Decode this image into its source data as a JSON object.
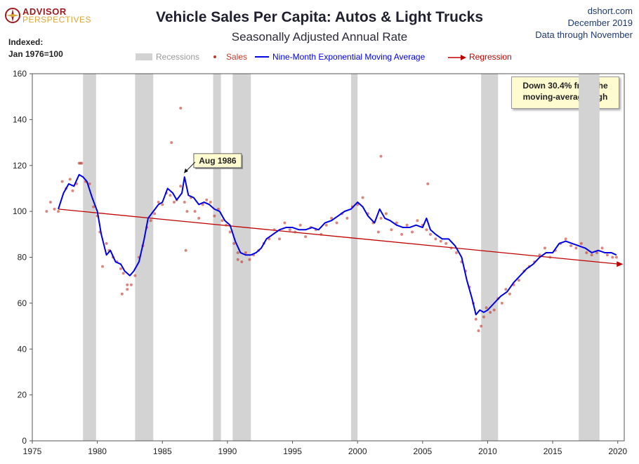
{
  "brand": {
    "line1": "ADVISOR",
    "line2": "PERSPECTIVES",
    "primary_color": "#9b1c20",
    "secondary_color": "#d9a63a"
  },
  "header": {
    "title": "Vehicle Sales Per Capita: Autos & Light Trucks",
    "subtitle": "Seasonally Adjusted Annual Rate",
    "site": "dshort.com",
    "date": "December 2019",
    "data_through": "Data through November",
    "index_label_1": "Indexed:",
    "index_label_2": "Jan 1976=100"
  },
  "callout": {
    "line1": "Down 30.4% from the",
    "line2": "moving-average high"
  },
  "chart_data": {
    "type": "line",
    "title": "Vehicle Sales Per Capita: Autos & Light Trucks",
    "subtitle": "Seasonally Adjusted Annual Rate",
    "xlabel": "",
    "ylabel": "",
    "xlim": [
      1975,
      2020.5
    ],
    "ylim": [
      0,
      160
    ],
    "x_ticks": [
      1975,
      1980,
      1985,
      1990,
      1995,
      2000,
      2005,
      2010,
      2015,
      2020
    ],
    "y_ticks": [
      0,
      20,
      40,
      60,
      80,
      100,
      120,
      140,
      160
    ],
    "grid": false,
    "legend_placement": "top-center",
    "legend": [
      {
        "label": "Recessions",
        "kind": "bar",
        "color": "#d3d3d3"
      },
      {
        "label": "Sales",
        "kind": "dots",
        "color": "#c0392b"
      },
      {
        "label": "Nine-Month Exponential Moving Average",
        "kind": "line",
        "color": "#0000e6"
      },
      {
        "label": "Regression",
        "kind": "arrow",
        "color": "#c00000"
      }
    ],
    "recessions": [
      [
        1978.9,
        1979.9
      ],
      [
        1982.9,
        1984.3
      ],
      [
        1988.9,
        1989.5
      ],
      [
        1990.4,
        1991.8
      ],
      [
        1999.5,
        2000.0
      ],
      [
        2009.5,
        2010.8
      ],
      [
        2017.0,
        2018.6
      ]
    ],
    "regression": {
      "x": [
        1977.0,
        2020.3
      ],
      "y": [
        101.0,
        77.0
      ]
    },
    "annotation": {
      "text": "Aug 1986",
      "x": 1986.6,
      "y": 116
    },
    "series": [
      {
        "name": "Nine-Month Exponential Moving Average",
        "color": "#0000e6",
        "x": [
          1977.0,
          1977.4,
          1977.8,
          1978.2,
          1978.6,
          1978.9,
          1979.2,
          1979.6,
          1980.0,
          1980.3,
          1980.7,
          1981.0,
          1981.4,
          1981.8,
          1982.1,
          1982.5,
          1982.8,
          1983.2,
          1983.6,
          1983.9,
          1984.3,
          1984.7,
          1985.0,
          1985.4,
          1985.8,
          1986.1,
          1986.5,
          1986.7,
          1987.0,
          1987.4,
          1987.8,
          1988.2,
          1988.6,
          1989.0,
          1989.4,
          1989.8,
          1990.2,
          1990.6,
          1991.0,
          1991.4,
          1991.8,
          1992.2,
          1992.6,
          1993.0,
          1993.5,
          1994.0,
          1994.5,
          1995.0,
          1995.5,
          1996.0,
          1996.5,
          1997.0,
          1997.5,
          1998.0,
          1998.5,
          1999.0,
          1999.5,
          2000.0,
          2000.4,
          2000.8,
          2001.3,
          2001.7,
          2002.1,
          2002.5,
          2003.0,
          2003.5,
          2004.0,
          2004.5,
          2005.0,
          2005.3,
          2005.6,
          2006.0,
          2006.5,
          2007.0,
          2007.5,
          2008.0,
          2008.4,
          2008.8,
          2009.1,
          2009.4,
          2009.7,
          2010.0,
          2010.5,
          2011.0,
          2011.5,
          2012.0,
          2012.5,
          2013.0,
          2013.5,
          2014.0,
          2014.5,
          2015.0,
          2015.5,
          2016.0,
          2016.5,
          2017.0,
          2017.5,
          2018.0,
          2018.5,
          2019.0,
          2019.5,
          2019.9
        ],
        "y": [
          101,
          108,
          112,
          111,
          116,
          115,
          113,
          106,
          100,
          90,
          81,
          83,
          78,
          77,
          74,
          72,
          74,
          78,
          88,
          97,
          100,
          103,
          104,
          110,
          108,
          105,
          108,
          115,
          107,
          106,
          103,
          104,
          103,
          101,
          100,
          96,
          94,
          87,
          82,
          81,
          81,
          82,
          84,
          88,
          90,
          92,
          93,
          93,
          92,
          92,
          93,
          92,
          95,
          96,
          98,
          100,
          101,
          104,
          102,
          98,
          95,
          101,
          97,
          96,
          94,
          93,
          93,
          94,
          93,
          97,
          92,
          90,
          88,
          88,
          85,
          80,
          70,
          62,
          55,
          57,
          56,
          57,
          60,
          63,
          65,
          69,
          72,
          75,
          77,
          80,
          82,
          82,
          86,
          87,
          86,
          85,
          84,
          82,
          83,
          82,
          82,
          81
        ]
      },
      {
        "name": "Sales",
        "color": "#c0392b",
        "x": [
          1976.1,
          1976.4,
          1976.7,
          1977.0,
          1977.3,
          1977.6,
          1977.9,
          1978.1,
          1978.4,
          1978.6,
          1978.8,
          1979.1,
          1979.4,
          1979.7,
          1980.0,
          1980.2,
          1980.4,
          1980.7,
          1980.9,
          1981.2,
          1981.5,
          1981.8,
          1982.0,
          1982.3,
          1982.6,
          1982.9,
          1983.2,
          1983.5,
          1983.8,
          1984.1,
          1984.4,
          1984.7,
          1985.0,
          1985.3,
          1985.6,
          1985.9,
          1986.1,
          1986.4,
          1986.7,
          1986.9,
          1987.2,
          1987.5,
          1987.8,
          1988.1,
          1988.4,
          1988.7,
          1989.0,
          1989.3,
          1989.6,
          1989.9,
          1990.2,
          1990.5,
          1990.8,
          1991.1,
          1991.4,
          1991.7,
          1992.0,
          1992.4,
          1992.8,
          1993.2,
          1993.6,
          1994.0,
          1994.4,
          1994.8,
          1995.2,
          1995.6,
          1996.0,
          1996.4,
          1996.8,
          1997.2,
          1997.6,
          1998.0,
          1998.4,
          1998.8,
          1999.2,
          1999.6,
          2000.0,
          2000.4,
          2000.8,
          2001.2,
          2001.6,
          2001.8,
          2002.2,
          2002.6,
          2003.0,
          2003.4,
          2003.8,
          2004.2,
          2004.6,
          2005.0,
          2005.3,
          2005.6,
          2006.0,
          2006.4,
          2006.8,
          2007.2,
          2007.6,
          2008.0,
          2008.3,
          2008.6,
          2008.9,
          2009.1,
          2009.3,
          2009.5,
          2009.7,
          2009.9,
          2010.2,
          2010.5,
          2010.8,
          2011.1,
          2011.4,
          2011.7,
          2012.0,
          2012.4,
          2012.8,
          2013.2,
          2013.6,
          2014.0,
          2014.4,
          2014.8,
          2015.2,
          2015.6,
          2016.0,
          2016.4,
          2016.8,
          2017.2,
          2017.6,
          2018.0,
          2018.4,
          2018.8,
          2019.2,
          2019.6,
          2019.9,
          1986.4,
          1985.7,
          2001.8,
          2005.4,
          1978.7,
          1981.9,
          1982.3,
          1986.8,
          1990.8
        ],
        "y": [
          100,
          104,
          101,
          100,
          113,
          110,
          114,
          109,
          112,
          121,
          121,
          113,
          112,
          102,
          98,
          91,
          76,
          86,
          83,
          80,
          78,
          75,
          73,
          66,
          68,
          72,
          80,
          85,
          93,
          96,
          99,
          104,
          103,
          108,
          107,
          104,
          105,
          111,
          104,
          100,
          106,
          100,
          97,
          103,
          105,
          104,
          98,
          101,
          96,
          94,
          91,
          86,
          82,
          78,
          82,
          79,
          81,
          83,
          86,
          88,
          92,
          88,
          95,
          92,
          91,
          94,
          89,
          93,
          92,
          90,
          94,
          97,
          95,
          99,
          97,
          102,
          103,
          106,
          99,
          95,
          91,
          97,
          99,
          92,
          95,
          90,
          94,
          91,
          96,
          94,
          92,
          90,
          88,
          87,
          86,
          84,
          82,
          78,
          74,
          67,
          60,
          53,
          48,
          50,
          54,
          58,
          56,
          57,
          62,
          60,
          66,
          64,
          68,
          70,
          74,
          76,
          78,
          81,
          84,
          80,
          83,
          86,
          88,
          85,
          84,
          86,
          82,
          81,
          82,
          84,
          81,
          80,
          80,
          145,
          130,
          124,
          112,
          121,
          64,
          68,
          83,
          79
        ]
      }
    ]
  }
}
